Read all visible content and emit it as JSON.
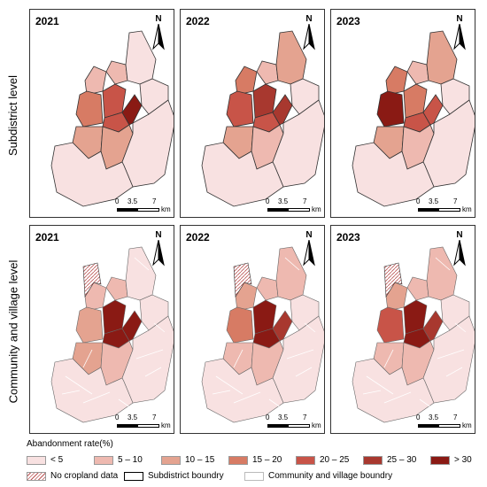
{
  "row_labels": [
    "Subdistrict level",
    "Community and village level"
  ],
  "years": [
    "2021",
    "2022",
    "2023"
  ],
  "north_label": "N",
  "scale": {
    "ticks": [
      "0",
      "3.5",
      "7"
    ],
    "unit": "km"
  },
  "legend": {
    "title": "Abandonment rate(%)",
    "classes": [
      {
        "label": "< 5",
        "color": "#f8e1e1"
      },
      {
        "label": "5 – 10",
        "color": "#eeb9b0"
      },
      {
        "label": "10 – 15",
        "color": "#e4a390"
      },
      {
        "label": "15 – 20",
        "color": "#d77b64"
      },
      {
        "label": "20 – 25",
        "color": "#c85448"
      },
      {
        "label": "25 – 30",
        "color": "#a8382f"
      },
      {
        "label": "> 30",
        "color": "#8a1a14"
      }
    ],
    "extra": [
      {
        "label": "No cropland data",
        "kind": "hatch"
      },
      {
        "label": "Subdistrict boundry",
        "kind": "outline-dark"
      },
      {
        "label": "Community and village boundry",
        "kind": "outline-light"
      }
    ]
  },
  "maps": {
    "subdistrict": [
      {
        "year": "2021",
        "classes": [
          1,
          3,
          4,
          4,
          6,
          1,
          0,
          0,
          2,
          2,
          0,
          0
        ]
      },
      {
        "year": "2022",
        "classes": [
          3,
          4,
          5,
          4,
          5,
          1,
          2,
          0,
          2,
          1,
          0,
          0
        ]
      },
      {
        "year": "2023",
        "classes": [
          3,
          6,
          3,
          4,
          4,
          1,
          2,
          0,
          2,
          1,
          0,
          0
        ]
      }
    ],
    "community": [
      {
        "year": "2021",
        "classes": [
          1,
          2,
          6,
          6,
          6,
          1,
          0,
          0,
          2,
          1,
          0,
          0
        ]
      },
      {
        "year": "2022",
        "classes": [
          2,
          3,
          6,
          6,
          5,
          1,
          1,
          0,
          1,
          1,
          0,
          0
        ]
      },
      {
        "year": "2023",
        "classes": [
          2,
          4,
          6,
          6,
          5,
          1,
          1,
          0,
          1,
          1,
          0,
          0
        ]
      }
    ]
  }
}
